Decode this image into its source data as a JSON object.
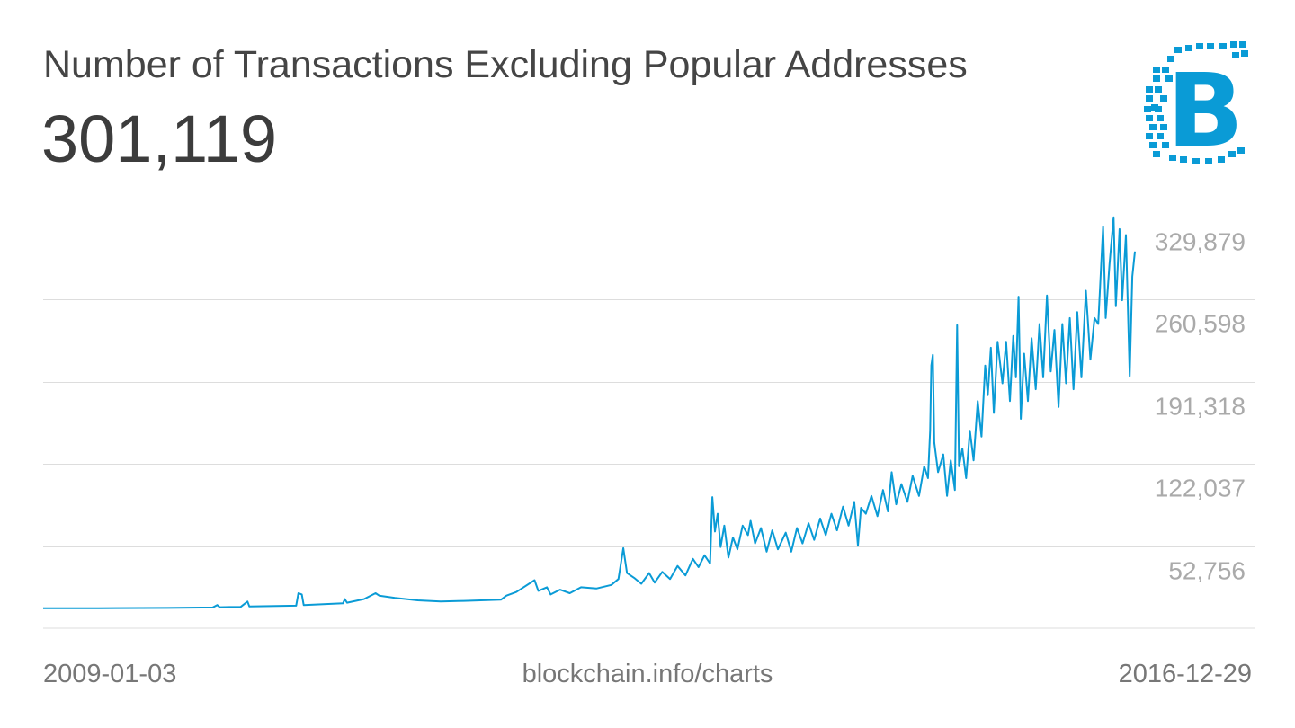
{
  "title": "Number of Transactions Excluding Popular Addresses",
  "current_value": "301,119",
  "logo": {
    "name": "blockchain-logo",
    "text": "B",
    "color": "#0a9bd6"
  },
  "footer": {
    "start_date": "2009-01-03",
    "source": "blockchain.info/charts",
    "end_date": "2016-12-29"
  },
  "chart_data": {
    "type": "line",
    "title": "Number of Transactions Excluding Popular Addresses",
    "xlabel": "",
    "ylabel": "",
    "xlim": [
      "2009-01-03",
      "2016-12-29"
    ],
    "ylim": [
      -16525,
      347200
    ],
    "y_ticks": [
      52756,
      122037,
      191318,
      260598,
      329879
    ],
    "y_tick_labels": [
      "52,756",
      "122,037",
      "191,318",
      "260,598",
      "329,879"
    ],
    "y_axis_position": "right",
    "grid": true,
    "line_color": "#0a9bd6",
    "grid_color": "#dddddd",
    "series": [
      {
        "points": [
          [
            "2009-01-03",
            300
          ],
          [
            "2009-06-01",
            400
          ],
          [
            "2009-12-01",
            600
          ],
          [
            "2010-04-01",
            1000
          ],
          [
            "2010-04-13",
            3000
          ],
          [
            "2010-04-20",
            1200
          ],
          [
            "2010-06-15",
            1500
          ],
          [
            "2010-07-03",
            6000
          ],
          [
            "2010-07-08",
            1800
          ],
          [
            "2010-11-10",
            2500
          ],
          [
            "2010-11-16",
            13000
          ],
          [
            "2010-11-25",
            12000
          ],
          [
            "2010-11-30",
            3000
          ],
          [
            "2011-03-15",
            4500
          ],
          [
            "2011-03-20",
            8000
          ],
          [
            "2011-03-26",
            5000
          ],
          [
            "2011-05-10",
            8000
          ],
          [
            "2011-06-10",
            13000
          ],
          [
            "2011-06-20",
            11000
          ],
          [
            "2011-08-01",
            9000
          ],
          [
            "2011-10-01",
            7000
          ],
          [
            "2011-12-01",
            6000
          ],
          [
            "2012-02-01",
            6500
          ],
          [
            "2012-05-10",
            7500
          ],
          [
            "2012-05-25",
            11000
          ],
          [
            "2012-06-20",
            14000
          ],
          [
            "2012-08-08",
            24000
          ],
          [
            "2012-08-18",
            15000
          ],
          [
            "2012-09-10",
            18000
          ],
          [
            "2012-09-20",
            12000
          ],
          [
            "2012-10-15",
            16000
          ],
          [
            "2012-11-10",
            13000
          ],
          [
            "2012-12-10",
            18000
          ],
          [
            "2013-01-20",
            17000
          ],
          [
            "2013-03-01",
            20000
          ],
          [
            "2013-03-20",
            25000
          ],
          [
            "2013-04-02",
            51000
          ],
          [
            "2013-04-12",
            30000
          ],
          [
            "2013-05-01",
            26000
          ],
          [
            "2013-05-20",
            21000
          ],
          [
            "2013-06-10",
            30000
          ],
          [
            "2013-06-25",
            22000
          ],
          [
            "2013-07-15",
            31000
          ],
          [
            "2013-08-05",
            25000
          ],
          [
            "2013-08-25",
            36000
          ],
          [
            "2013-09-15",
            28000
          ],
          [
            "2013-10-05",
            42000
          ],
          [
            "2013-10-20",
            35000
          ],
          [
            "2013-11-05",
            45000
          ],
          [
            "2013-11-20",
            38000
          ],
          [
            "2013-11-26",
            94000
          ],
          [
            "2013-12-03",
            65000
          ],
          [
            "2013-12-10",
            80000
          ],
          [
            "2013-12-18",
            52000
          ],
          [
            "2013-12-28",
            70000
          ],
          [
            "2014-01-08",
            43000
          ],
          [
            "2014-01-20",
            60000
          ],
          [
            "2014-02-01",
            50000
          ],
          [
            "2014-02-15",
            70000
          ],
          [
            "2014-03-01",
            62000
          ],
          [
            "2014-03-08",
            74000
          ],
          [
            "2014-03-20",
            55000
          ],
          [
            "2014-04-05",
            68000
          ],
          [
            "2014-04-20",
            48000
          ],
          [
            "2014-05-05",
            66000
          ],
          [
            "2014-05-20",
            50000
          ],
          [
            "2014-06-10",
            64000
          ],
          [
            "2014-06-25",
            48000
          ],
          [
            "2014-07-10",
            68000
          ],
          [
            "2014-07-25",
            55000
          ],
          [
            "2014-08-10",
            72000
          ],
          [
            "2014-08-25",
            58000
          ],
          [
            "2014-09-10",
            76000
          ],
          [
            "2014-09-25",
            62000
          ],
          [
            "2014-10-10",
            80000
          ],
          [
            "2014-10-25",
            66000
          ],
          [
            "2014-11-10",
            86000
          ],
          [
            "2014-11-25",
            70000
          ],
          [
            "2014-12-10",
            90000
          ],
          [
            "2014-12-20",
            53000
          ],
          [
            "2014-12-28",
            85000
          ],
          [
            "2015-01-10",
            80000
          ],
          [
            "2015-01-25",
            95000
          ],
          [
            "2015-02-10",
            78000
          ],
          [
            "2015-02-25",
            100000
          ],
          [
            "2015-03-10",
            82000
          ],
          [
            "2015-03-20",
            115000
          ],
          [
            "2015-04-01",
            88000
          ],
          [
            "2015-04-15",
            105000
          ],
          [
            "2015-05-01",
            90000
          ],
          [
            "2015-05-15",
            112000
          ],
          [
            "2015-06-01",
            95000
          ],
          [
            "2015-06-15",
            120000
          ],
          [
            "2015-06-25",
            110000
          ],
          [
            "2015-07-01",
            150000
          ],
          [
            "2015-07-04",
            205000
          ],
          [
            "2015-07-08",
            214000
          ],
          [
            "2015-07-12",
            140000
          ],
          [
            "2015-07-22",
            115000
          ],
          [
            "2015-08-05",
            130000
          ],
          [
            "2015-08-15",
            95000
          ],
          [
            "2015-08-25",
            125000
          ],
          [
            "2015-09-05",
            100000
          ],
          [
            "2015-09-11",
            239000
          ],
          [
            "2015-09-16",
            120000
          ],
          [
            "2015-09-25",
            135000
          ],
          [
            "2015-10-05",
            110000
          ],
          [
            "2015-10-15",
            150000
          ],
          [
            "2015-10-25",
            125000
          ],
          [
            "2015-11-05",
            175000
          ],
          [
            "2015-11-15",
            145000
          ],
          [
            "2015-11-25",
            205000
          ],
          [
            "2015-12-02",
            180000
          ],
          [
            "2015-12-10",
            220000
          ],
          [
            "2015-12-18",
            165000
          ],
          [
            "2015-12-28",
            225000
          ],
          [
            "2016-01-10",
            190000
          ],
          [
            "2016-01-20",
            225000
          ],
          [
            "2016-01-30",
            175000
          ],
          [
            "2016-02-08",
            230000
          ],
          [
            "2016-02-15",
            195000
          ],
          [
            "2016-02-22",
            263000
          ],
          [
            "2016-02-28",
            160000
          ],
          [
            "2016-03-08",
            215000
          ],
          [
            "2016-03-18",
            175000
          ],
          [
            "2016-03-28",
            228000
          ],
          [
            "2016-04-08",
            185000
          ],
          [
            "2016-04-18",
            240000
          ],
          [
            "2016-04-28",
            195000
          ],
          [
            "2016-05-08",
            264000
          ],
          [
            "2016-05-18",
            200000
          ],
          [
            "2016-05-28",
            235000
          ],
          [
            "2016-06-08",
            170000
          ],
          [
            "2016-06-18",
            240000
          ],
          [
            "2016-06-28",
            190000
          ],
          [
            "2016-07-08",
            245000
          ],
          [
            "2016-07-18",
            185000
          ],
          [
            "2016-07-28",
            250000
          ],
          [
            "2016-08-08",
            195000
          ],
          [
            "2016-08-20",
            268000
          ],
          [
            "2016-09-01",
            210000
          ],
          [
            "2016-09-12",
            245000
          ],
          [
            "2016-09-22",
            240000
          ],
          [
            "2016-10-05",
            322000
          ],
          [
            "2016-10-12",
            245000
          ],
          [
            "2016-10-22",
            290000
          ],
          [
            "2016-11-02",
            330000
          ],
          [
            "2016-11-08",
            255000
          ],
          [
            "2016-11-18",
            320000
          ],
          [
            "2016-11-25",
            260000
          ],
          [
            "2016-12-05",
            315000
          ],
          [
            "2016-12-15",
            196000
          ],
          [
            "2016-12-22",
            280000
          ],
          [
            "2016-12-29",
            301119
          ]
        ]
      }
    ]
  }
}
